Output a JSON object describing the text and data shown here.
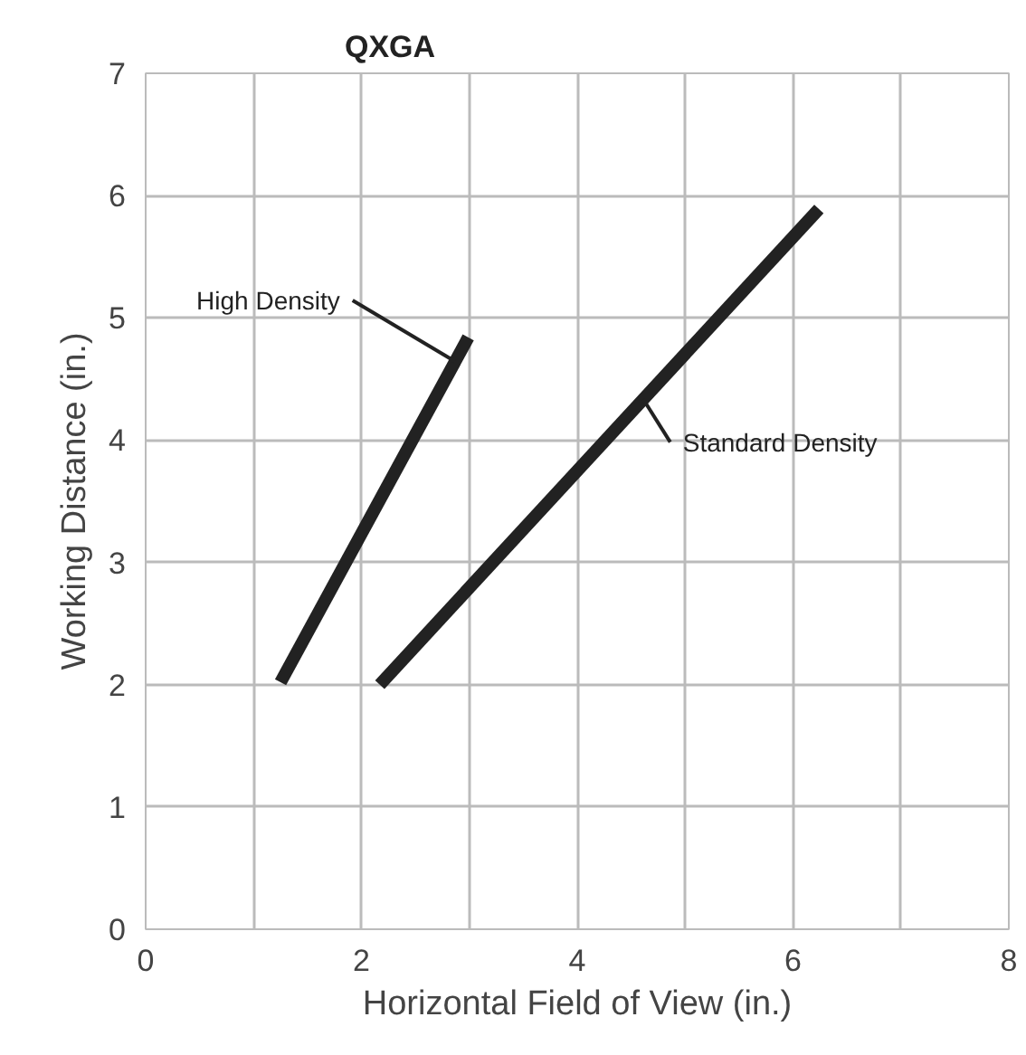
{
  "chart_data": {
    "type": "line",
    "title": "QXGA",
    "xlabel": "Horizontal Field of View (in.)",
    "ylabel": "Working Distance (in.)",
    "xlim": [
      0,
      8
    ],
    "ylim": [
      0,
      7
    ],
    "xticks": [
      0,
      {
        "value": 1,
        "label": null
      },
      2,
      {
        "value": 3,
        "label": null
      },
      4,
      {
        "value": 5,
        "label": null
      },
      6,
      {
        "value": 7,
        "label": null
      },
      8
    ],
    "yticks": [
      0,
      1,
      2,
      3,
      4,
      5,
      6,
      7
    ],
    "grid": true,
    "legend": false,
    "marker": "none",
    "line_style": "solid",
    "series": [
      {
        "name": "High Density",
        "color": "#222222",
        "x": [
          1.25,
          2.99
        ],
        "values": [
          2.02,
          4.84
        ]
      },
      {
        "name": "Standard Density",
        "color": "#222222",
        "x": [
          2.17,
          6.24
        ],
        "values": [
          2.0,
          5.89
        ]
      }
    ]
  }
}
